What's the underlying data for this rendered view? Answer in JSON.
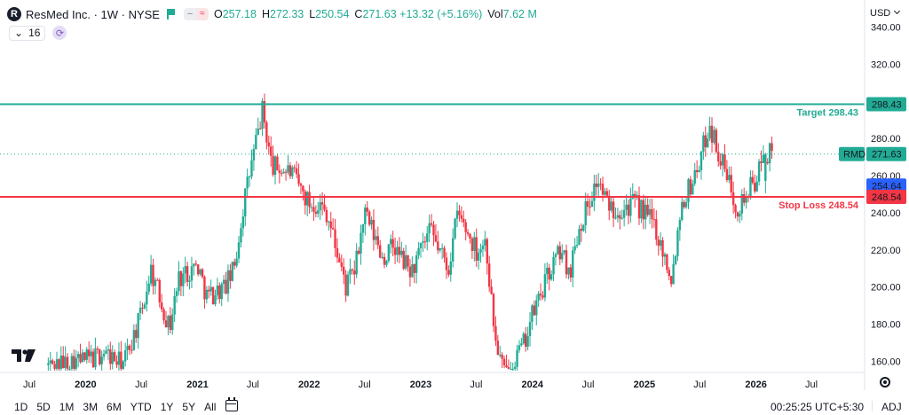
{
  "header": {
    "logo_letter": "R",
    "symbol": "ResMed Inc. · 1W · NYSE",
    "ohlc": [
      {
        "k": "O",
        "v": "257.18"
      },
      {
        "k": "H",
        "v": "272.33"
      },
      {
        "k": "L",
        "v": "250.54"
      },
      {
        "k": "C",
        "v": "271.63 +13.32 (+5.16%)"
      }
    ],
    "vol_label": "Vol",
    "vol_value": "7.62 M",
    "interval_count": "16",
    "currency": "USD"
  },
  "bottom": {
    "ranges": [
      "1D",
      "5D",
      "1M",
      "3M",
      "6M",
      "YTD",
      "1Y",
      "5Y",
      "All"
    ],
    "time": "00:25:25 UTC+5:30",
    "adj": "ADJ"
  },
  "colors": {
    "up": "#22ab94",
    "down": "#f23645",
    "target": "#22ab94",
    "stop": "#f23645",
    "prev_close": "#2962ff"
  },
  "icons": [
    "chevron-down-icon",
    "refresh-icon",
    "flag-icon",
    "calendar-icon",
    "gear-icon",
    "tradingview-logo"
  ],
  "chart_data": {
    "type": "candlestick",
    "title": "ResMed Inc. · 1W · NYSE",
    "ylim": [
      155,
      345
    ],
    "y_ticks": [
      160,
      180,
      200,
      220,
      240,
      260,
      280,
      300,
      320,
      340
    ],
    "x_ticks": [
      "Jul",
      "2020",
      "Jul",
      "2021",
      "Jul",
      "2022",
      "Jul",
      "2023",
      "Jul",
      "2024",
      "Jul",
      "2025",
      "Jul",
      "2026",
      "Jul"
    ],
    "close_path": [
      [
        "2019-09",
        158
      ],
      [
        "2019-12",
        160
      ],
      [
        "2020-02",
        162
      ],
      [
        "2020-03",
        165
      ],
      [
        "2020-05",
        158
      ],
      [
        "2020-07",
        185
      ],
      [
        "2020-08",
        210
      ],
      [
        "2020-10",
        178
      ],
      [
        "2020-11",
        205
      ],
      [
        "2021-01",
        212
      ],
      [
        "2021-02",
        195
      ],
      [
        "2021-04",
        200
      ],
      [
        "2021-05",
        210
      ],
      [
        "2021-06",
        245
      ],
      [
        "2021-07",
        270
      ],
      [
        "2021-08",
        295
      ],
      [
        "2021-09",
        265
      ],
      [
        "2021-11",
        262
      ],
      [
        "2022-01",
        245
      ],
      [
        "2022-02",
        245
      ],
      [
        "2022-03",
        240
      ],
      [
        "2022-05",
        200
      ],
      [
        "2022-06",
        210
      ],
      [
        "2022-07",
        240
      ],
      [
        "2022-09",
        215
      ],
      [
        "2022-10",
        222
      ],
      [
        "2022-12",
        208
      ],
      [
        "2023-02",
        230
      ],
      [
        "2023-04",
        210
      ],
      [
        "2023-05",
        240
      ],
      [
        "2023-07",
        220
      ],
      [
        "2023-08",
        225
      ],
      [
        "2023-09",
        172
      ],
      [
        "2023-10",
        153
      ],
      [
        "2023-12",
        168
      ],
      [
        "2024-01",
        185
      ],
      [
        "2024-03",
        210
      ],
      [
        "2024-04",
        220
      ],
      [
        "2024-05",
        208
      ],
      [
        "2024-06",
        232
      ],
      [
        "2024-07",
        245
      ],
      [
        "2024-08",
        258
      ],
      [
        "2024-09",
        245
      ],
      [
        "2024-10",
        242
      ],
      [
        "2024-12",
        245
      ],
      [
        "2025-01",
        240
      ],
      [
        "2025-02",
        235
      ],
      [
        "2025-03",
        220
      ],
      [
        "2025-04",
        205
      ],
      [
        "2025-05",
        245
      ],
      [
        "2025-06",
        255
      ],
      [
        "2025-07",
        268
      ],
      [
        "2025-08",
        288
      ],
      [
        "2025-09",
        272
      ],
      [
        "2025-10",
        258
      ],
      [
        "2025-11",
        243
      ],
      [
        "2025-12",
        250
      ],
      [
        "2026-01",
        258
      ],
      [
        "2026-02",
        271.63
      ]
    ],
    "horizontal_lines": [
      {
        "name": "Target 298.43",
        "value": 298.43,
        "price_label": "298.43"
      },
      {
        "name": "Stop Loss 248.54",
        "value": 248.54,
        "price_label": "248.54"
      }
    ],
    "last_price": {
      "symbol": "RMD",
      "value": 271.63,
      "label": "271.63"
    },
    "prev_close": {
      "value": 254.64,
      "label": "254.64"
    }
  }
}
